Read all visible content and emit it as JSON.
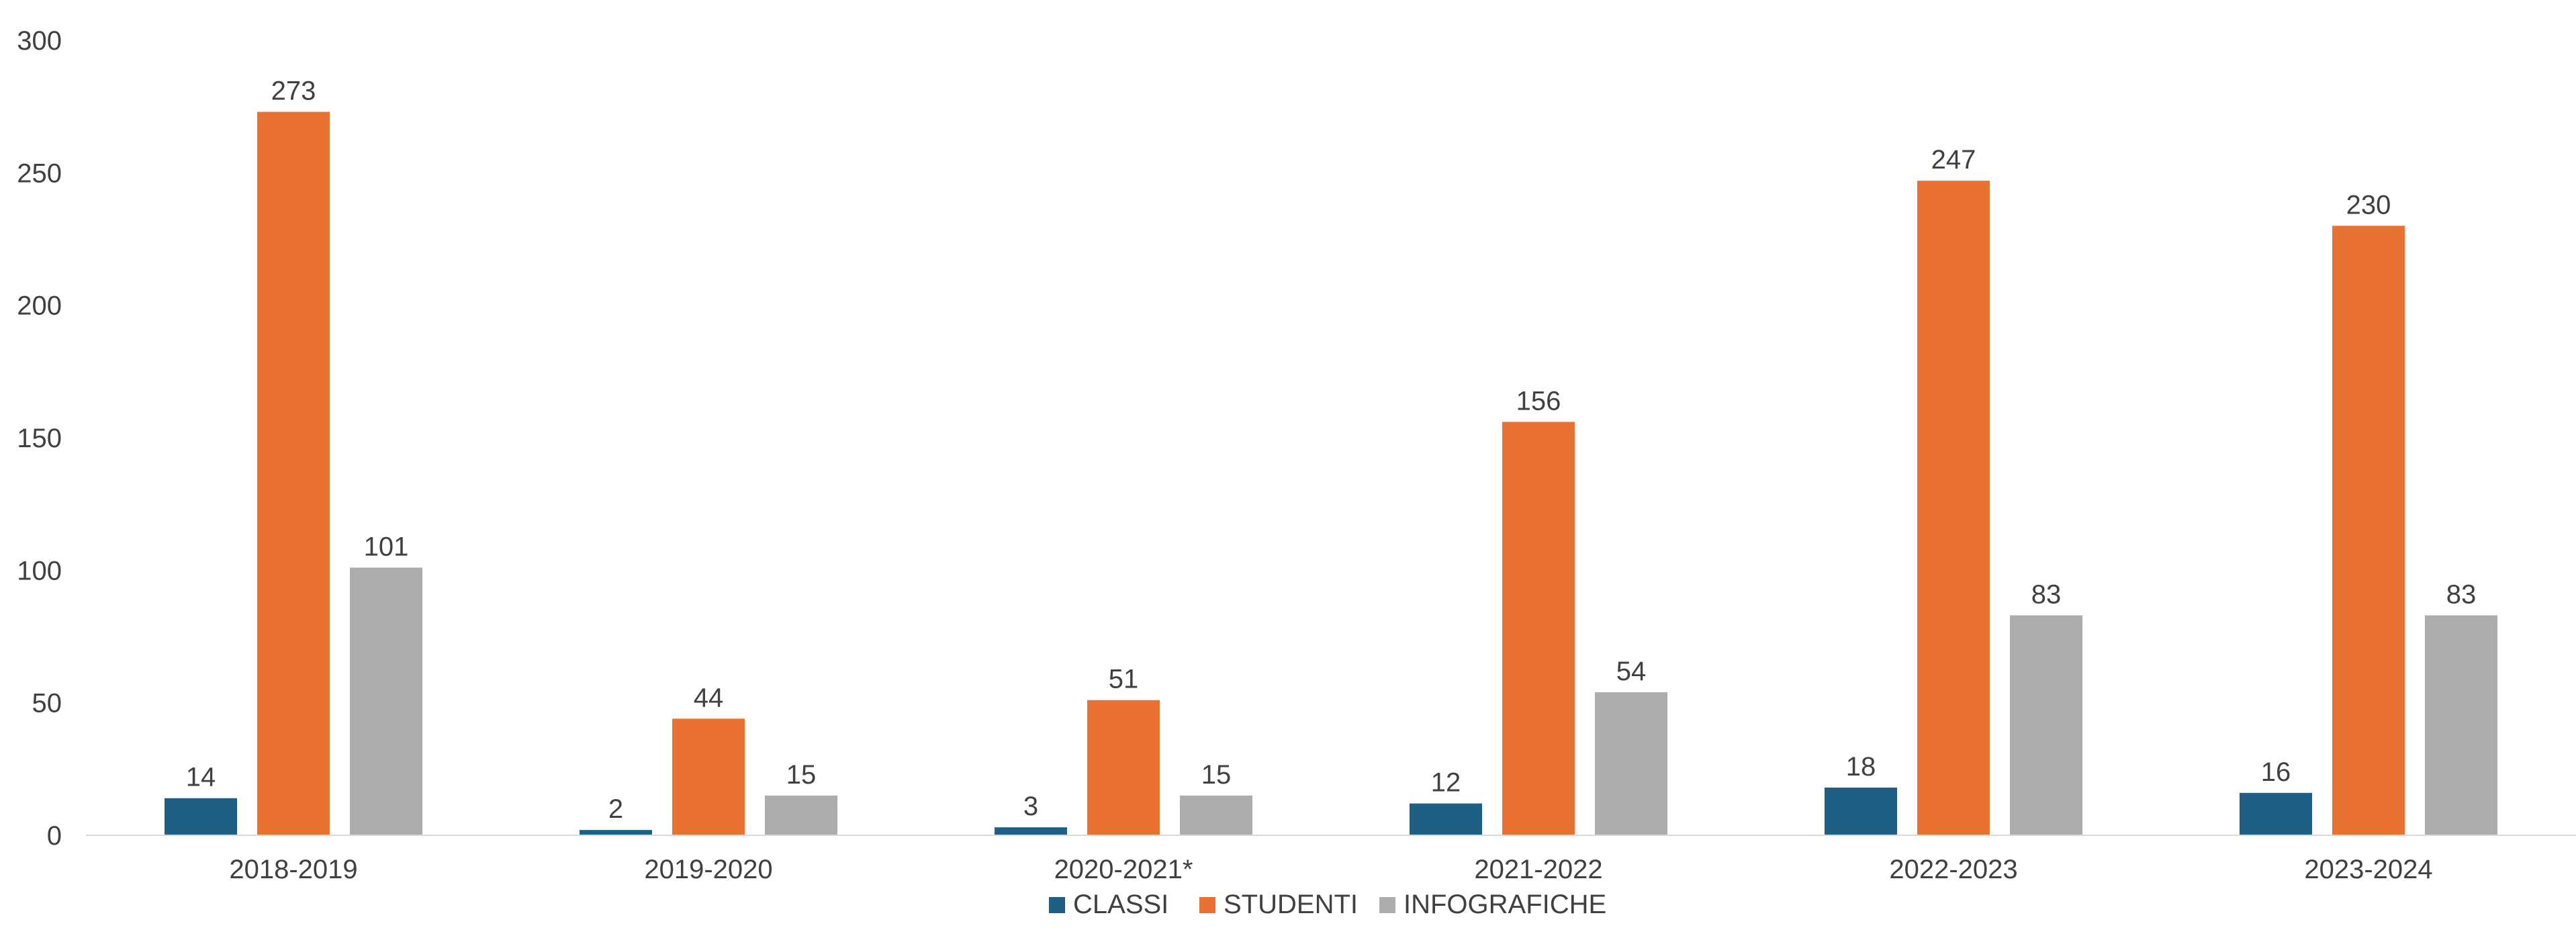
{
  "chart_data": {
    "type": "bar",
    "categories": [
      "2018-2019",
      "2019-2020",
      "2020-2021*",
      "2021-2022",
      "2022-2023",
      "2023-2024"
    ],
    "series": [
      {
        "name": "CLASSI",
        "color": "#1f5f84",
        "values": [
          14,
          2,
          3,
          12,
          18,
          16
        ]
      },
      {
        "name": "STUDENTI",
        "color": "#e97132",
        "values": [
          273,
          44,
          51,
          156,
          247,
          230
        ]
      },
      {
        "name": "INFOGRAFICHE",
        "color": "#adadad",
        "values": [
          101,
          15,
          15,
          54,
          83,
          83
        ]
      }
    ],
    "ylim": [
      0,
      300
    ],
    "yticks": [
      0,
      50,
      100,
      150,
      200,
      250,
      300
    ],
    "grid": false,
    "legend_position": "bottom"
  }
}
